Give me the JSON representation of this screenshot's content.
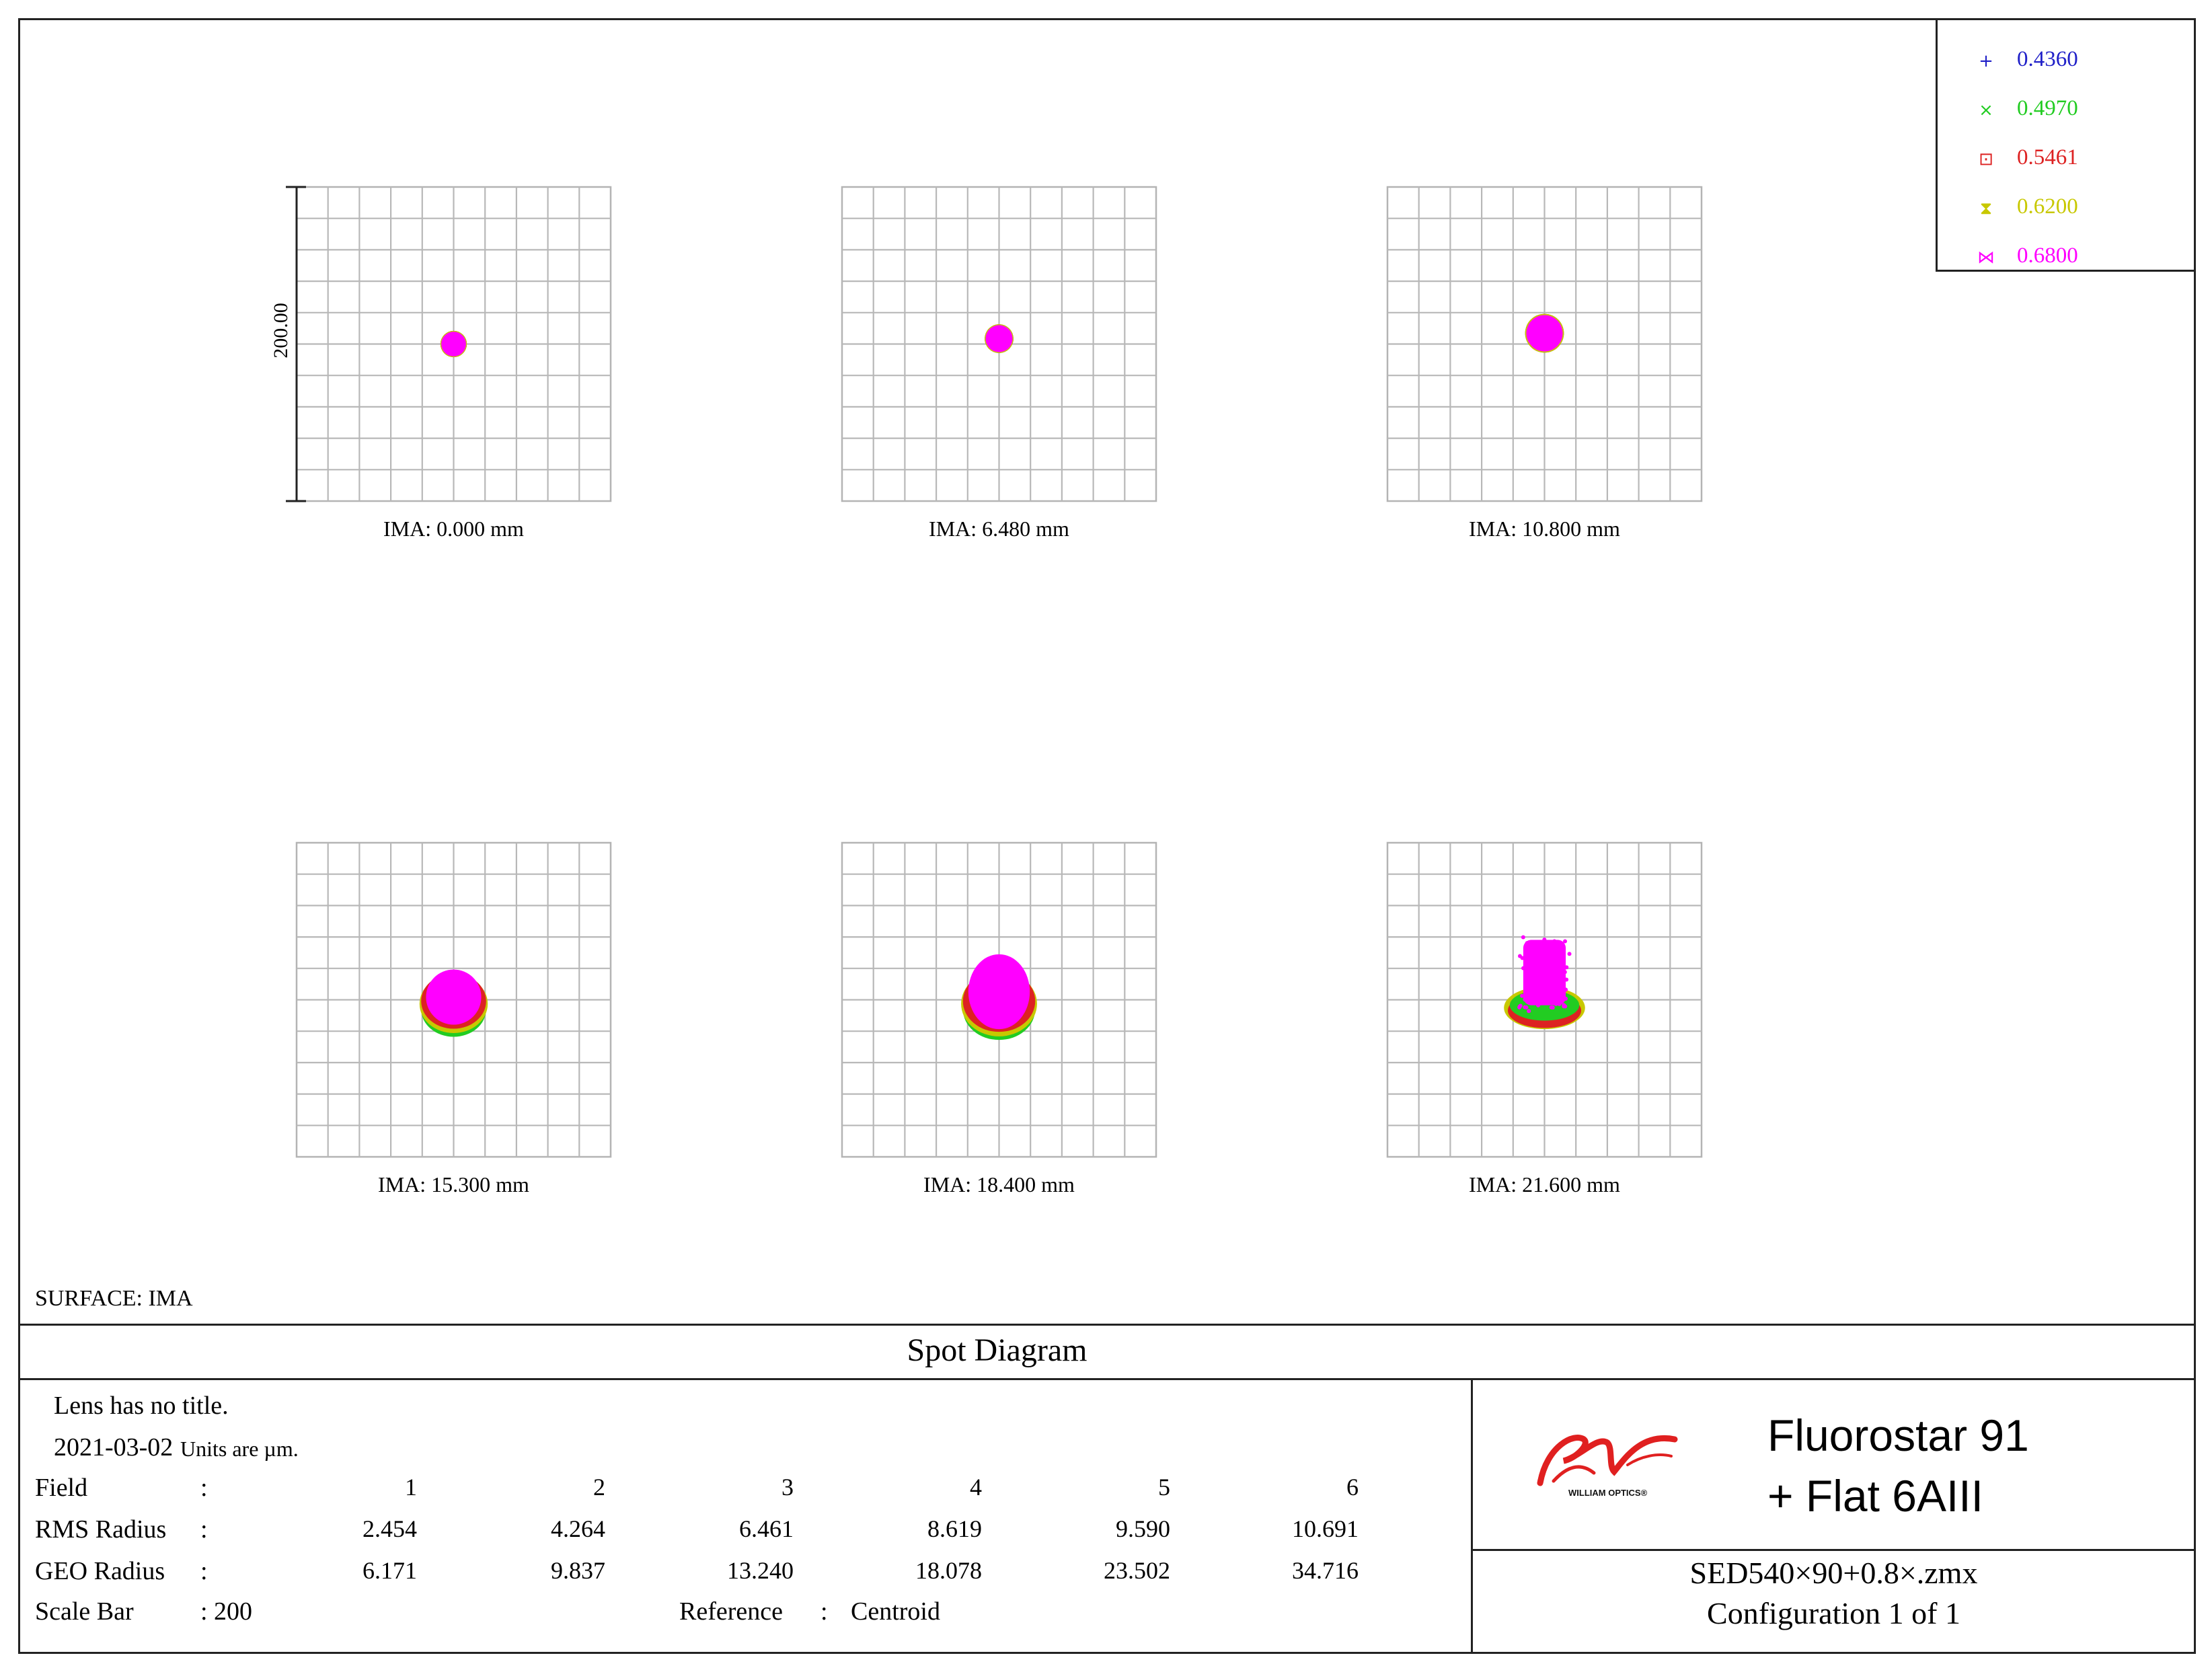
{
  "chart_data": {
    "type": "scatter",
    "title": "Spot Diagram",
    "surface": "SURFACE: IMA",
    "scale_bar_label": "200.00",
    "scale_bar_um": 200,
    "grid_divisions": 10,
    "fields": [
      {
        "label": "IMA: 0.000 mm",
        "rms_radius": 2.454,
        "geo_radius": 6.171,
        "shape": "round"
      },
      {
        "label": "IMA: 6.480 mm",
        "rms_radius": 4.264,
        "geo_radius": 9.837,
        "shape": "round"
      },
      {
        "label": "IMA: 10.800 mm",
        "rms_radius": 6.461,
        "geo_radius": 13.24,
        "shape": "round"
      },
      {
        "label": "IMA: 15.300 mm",
        "rms_radius": 8.619,
        "geo_radius": 18.078,
        "shape": "coma"
      },
      {
        "label": "IMA: 18.400 mm",
        "rms_radius": 9.59,
        "geo_radius": 23.502,
        "shape": "coma"
      },
      {
        "label": "IMA: 21.600 mm",
        "rms_radius": 10.691,
        "geo_radius": 34.716,
        "shape": "flare"
      }
    ],
    "legend": {
      "placement": "top-right",
      "entries": [
        {
          "wavelength": "0.4360",
          "color": "#2020c8",
          "marker": "+"
        },
        {
          "wavelength": "0.4970",
          "color": "#22cc22",
          "marker": "×"
        },
        {
          "wavelength": "0.5461",
          "color": "#dd2222",
          "marker": "⊡"
        },
        {
          "wavelength": "0.6200",
          "color": "#c8c800",
          "marker": "⧗"
        },
        {
          "wavelength": "0.6800",
          "color": "#ff00ff",
          "marker": "⋈"
        }
      ]
    }
  },
  "info": {
    "lens_title": "Lens has no title.",
    "date": "2021-03-02",
    "units": "Units are µm.",
    "field_label": "Field",
    "rms_label": "RMS Radius",
    "geo_label": "GEO Radius",
    "scale_label": "Scale Bar",
    "colon": ":",
    "field_numbers": [
      "1",
      "2",
      "3",
      "4",
      "5",
      "6"
    ],
    "scale_value": ": 200",
    "reference_label": "Reference",
    "reference_value": "Centroid"
  },
  "brand": {
    "logo_text": "WILLIAM OPTICS®",
    "product_line1": "Fluorostar 91",
    "product_line2": "+ Flat 6AIII",
    "file_name": "SED540×90+0.8×.zmx",
    "configuration": "Configuration 1 of 1"
  }
}
